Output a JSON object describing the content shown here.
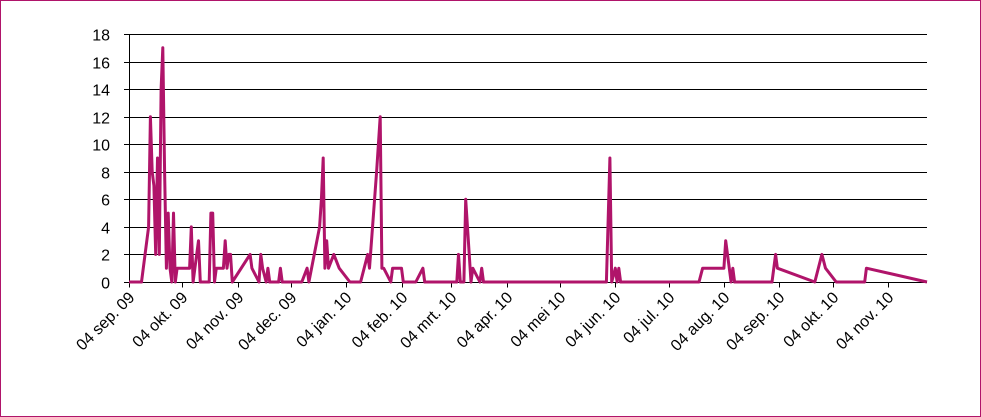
{
  "chart_data": {
    "type": "line",
    "title": "",
    "xlabel": "",
    "ylabel": "",
    "ylim": [
      0,
      18
    ],
    "yticks": [
      0,
      2,
      4,
      6,
      8,
      10,
      12,
      14,
      16,
      18
    ],
    "xlim": [
      "2009-09-04",
      "2010-11-26"
    ],
    "xticks": [
      {
        "date": "2009-09-04",
        "label": "04 sep. 09"
      },
      {
        "date": "2009-10-04",
        "label": "04 okt. 09"
      },
      {
        "date": "2009-11-04",
        "label": "04 nov. 09"
      },
      {
        "date": "2009-12-04",
        "label": "04 dec. 09"
      },
      {
        "date": "2010-01-04",
        "label": "04 jan. 10"
      },
      {
        "date": "2010-02-04",
        "label": "04 feb. 10"
      },
      {
        "date": "2010-03-04",
        "label": "04 mrt. 10"
      },
      {
        "date": "2010-04-04",
        "label": "04 apr. 10"
      },
      {
        "date": "2010-05-04",
        "label": "04 mei 10"
      },
      {
        "date": "2010-06-04",
        "label": "04 jun. 10"
      },
      {
        "date": "2010-07-04",
        "label": "04 jul. 10"
      },
      {
        "date": "2010-08-04",
        "label": "04 aug. 10"
      },
      {
        "date": "2010-09-04",
        "label": "04 sep. 10"
      },
      {
        "date": "2010-10-04",
        "label": "04 okt. 10"
      },
      {
        "date": "2010-11-04",
        "label": "04 nov. 10"
      }
    ],
    "grid": true,
    "legend": "none",
    "series": [
      {
        "color": "#b0146a",
        "points": [
          [
            "2009-09-04",
            0
          ],
          [
            "2009-09-11",
            0
          ],
          [
            "2009-09-15",
            4
          ],
          [
            "2009-09-16",
            12
          ],
          [
            "2009-09-17",
            8
          ],
          [
            "2009-09-18",
            7
          ],
          [
            "2009-09-19",
            2
          ],
          [
            "2009-09-20",
            9
          ],
          [
            "2009-09-21",
            2
          ],
          [
            "2009-09-22",
            14
          ],
          [
            "2009-09-23",
            17
          ],
          [
            "2009-09-24",
            8
          ],
          [
            "2009-09-25",
            1
          ],
          [
            "2009-09-26",
            5
          ],
          [
            "2009-09-27",
            1
          ],
          [
            "2009-09-28",
            0
          ],
          [
            "2009-09-29",
            5
          ],
          [
            "2009-09-30",
            0
          ],
          [
            "2009-10-01",
            1
          ],
          [
            "2009-10-08",
            1
          ],
          [
            "2009-10-09",
            4
          ],
          [
            "2009-10-10",
            0
          ],
          [
            "2009-10-11",
            1
          ],
          [
            "2009-10-12",
            2
          ],
          [
            "2009-10-13",
            3
          ],
          [
            "2009-10-14",
            0
          ],
          [
            "2009-10-19",
            0
          ],
          [
            "2009-10-20",
            5
          ],
          [
            "2009-10-21",
            5
          ],
          [
            "2009-10-22",
            0
          ],
          [
            "2009-10-23",
            1
          ],
          [
            "2009-10-27",
            1
          ],
          [
            "2009-10-28",
            3
          ],
          [
            "2009-10-29",
            1
          ],
          [
            "2009-10-30",
            2
          ],
          [
            "2009-10-31",
            2
          ],
          [
            "2009-11-01",
            0
          ],
          [
            "2009-11-11",
            2
          ],
          [
            "2009-11-12",
            1
          ],
          [
            "2009-11-16",
            0
          ],
          [
            "2009-11-17",
            2
          ],
          [
            "2009-11-18",
            1
          ],
          [
            "2009-11-20",
            0
          ],
          [
            "2009-11-21",
            1
          ],
          [
            "2009-11-22",
            0
          ],
          [
            "2009-11-27",
            0
          ],
          [
            "2009-11-28",
            1
          ],
          [
            "2009-11-29",
            0
          ],
          [
            "2009-12-10",
            0
          ],
          [
            "2009-12-13",
            1
          ],
          [
            "2009-12-14",
            0
          ],
          [
            "2009-12-20",
            4
          ],
          [
            "2009-12-21",
            6
          ],
          [
            "2009-12-22",
            9
          ],
          [
            "2009-12-23",
            1
          ],
          [
            "2009-12-24",
            3
          ],
          [
            "2009-12-25",
            1
          ],
          [
            "2009-12-28",
            2
          ],
          [
            "2009-12-31",
            1
          ],
          [
            "2010-01-06",
            0
          ],
          [
            "2010-01-12",
            0
          ],
          [
            "2010-01-16",
            2
          ],
          [
            "2010-01-17",
            1
          ],
          [
            "2010-01-21",
            8
          ],
          [
            "2010-01-23",
            12
          ],
          [
            "2010-01-24",
            1
          ],
          [
            "2010-01-25",
            1
          ],
          [
            "2010-01-29",
            0
          ],
          [
            "2010-01-30",
            1
          ],
          [
            "2010-02-04",
            1
          ],
          [
            "2010-02-05",
            0
          ],
          [
            "2010-02-12",
            0
          ],
          [
            "2010-02-16",
            1
          ],
          [
            "2010-02-17",
            0
          ],
          [
            "2010-03-04",
            0
          ],
          [
            "2010-03-07",
            0
          ],
          [
            "2010-03-08",
            2
          ],
          [
            "2010-03-09",
            0
          ],
          [
            "2010-03-11",
            0
          ],
          [
            "2010-03-12",
            6
          ],
          [
            "2010-03-15",
            0
          ],
          [
            "2010-03-16",
            1
          ],
          [
            "2010-03-20",
            0
          ],
          [
            "2010-03-21",
            1
          ],
          [
            "2010-03-22",
            0
          ],
          [
            "2010-05-30",
            0
          ],
          [
            "2010-06-01",
            9
          ],
          [
            "2010-06-02",
            0
          ],
          [
            "2010-06-04",
            1
          ],
          [
            "2010-06-05",
            0
          ],
          [
            "2010-06-06",
            1
          ],
          [
            "2010-06-07",
            0
          ],
          [
            "2010-07-21",
            0
          ],
          [
            "2010-07-23",
            1
          ],
          [
            "2010-08-04",
            1
          ],
          [
            "2010-08-05",
            3
          ],
          [
            "2010-08-06",
            2
          ],
          [
            "2010-08-08",
            0
          ],
          [
            "2010-08-09",
            1
          ],
          [
            "2010-08-10",
            0
          ],
          [
            "2010-08-31",
            0
          ],
          [
            "2010-09-02",
            2
          ],
          [
            "2010-09-03",
            1
          ],
          [
            "2010-09-24",
            0
          ],
          [
            "2010-09-28",
            2
          ],
          [
            "2010-09-30",
            1
          ],
          [
            "2010-10-06",
            0
          ],
          [
            "2010-10-22",
            0
          ],
          [
            "2010-10-23",
            1
          ],
          [
            "2010-11-26",
            0
          ]
        ]
      }
    ]
  }
}
